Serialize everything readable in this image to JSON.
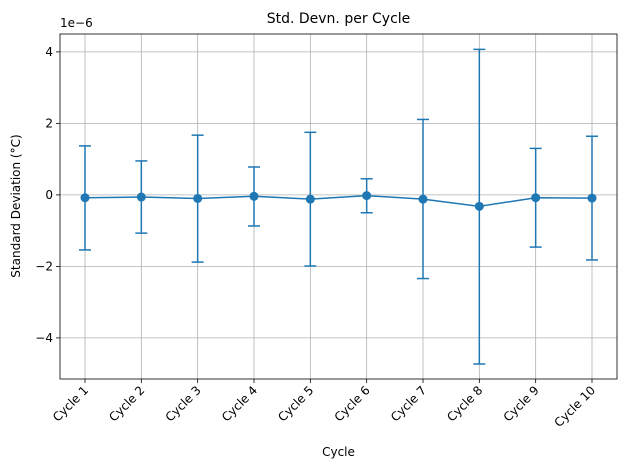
{
  "chart_data": {
    "type": "line",
    "title": "Std. Devn. per Cycle",
    "xlabel": "Cycle",
    "ylabel": "Standard Deviation (°C)",
    "y_offset_label": "1e−6",
    "categories": [
      "Cycle 1",
      "Cycle 2",
      "Cycle 3",
      "Cycle 4",
      "Cycle 5",
      "Cycle 6",
      "Cycle 7",
      "Cycle 8",
      "Cycle 9",
      "Cycle 10"
    ],
    "series": [
      {
        "values": [
          -0.08,
          -0.06,
          -0.1,
          -0.04,
          -0.12,
          -0.02,
          -0.12,
          -0.32,
          -0.08,
          -0.09
        ],
        "error_lower": [
          -1.54,
          -1.07,
          -1.88,
          -0.87,
          -1.99,
          -0.5,
          -2.34,
          -4.73,
          -1.46,
          -1.82
        ],
        "error_upper": [
          1.37,
          0.95,
          1.67,
          0.78,
          1.75,
          0.45,
          2.11,
          4.07,
          1.3,
          1.64
        ],
        "color": "#1f77b4"
      }
    ],
    "y_ticks": [
      -4,
      -2,
      0,
      2,
      4
    ],
    "y_tick_labels": [
      "−4",
      "−2",
      "0",
      "2",
      "4"
    ],
    "ylim": [
      -5.15,
      4.5
    ],
    "grid": true,
    "legend": "none"
  }
}
